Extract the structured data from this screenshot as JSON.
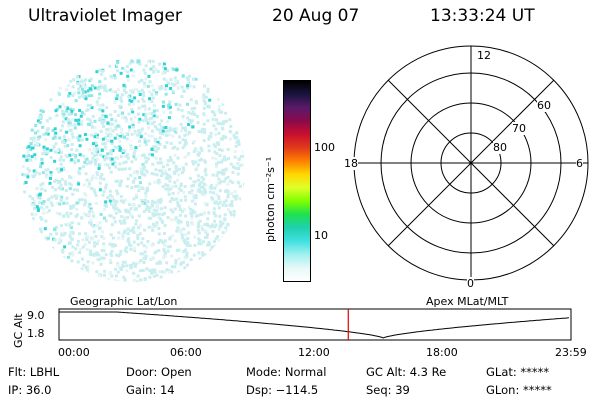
{
  "header": {
    "instrument": "Ultraviolet Imager",
    "date": "20 Aug 07",
    "time": "13:33:24 UT"
  },
  "colorbar": {
    "unit_label": "photon cm⁻²s⁻¹",
    "ticks": [
      "100",
      "10"
    ],
    "colors": [
      "#000000",
      "#1a1440",
      "#5a1a6a",
      "#8a0a4a",
      "#c8102e",
      "#e03a1a",
      "#ff7f00",
      "#ffd700",
      "#dfff2a",
      "#7fff00",
      "#20e050",
      "#20d0b0",
      "#40e0e0",
      "#a0f0f0",
      "#e6f8f8",
      "#ffffff"
    ]
  },
  "polar_plot": {
    "mlt_labels": {
      "top": "12",
      "left": "18",
      "right": "6",
      "bottom": "0"
    },
    "lat_labels": [
      "60",
      "70",
      "80"
    ]
  },
  "alt_plot": {
    "left_title": "Geographic Lat/Lon",
    "right_title": "Apex MLat/MLT",
    "ylabel": "GC Alt",
    "ytick_top": "9.0",
    "ytick_bottom": "1.8",
    "x_ticks": [
      "00:00",
      "06:00",
      "12:00",
      "18:00",
      "23:59"
    ],
    "current_time_hours": 13.56,
    "marker_color": "#e00000"
  },
  "footer": {
    "row1": {
      "filter": "Flt: LBHL",
      "door": "Door: Open",
      "mode": "Mode: Normal",
      "gc_alt": "GC Alt: 4.3 Re",
      "glat": "GLat: *****"
    },
    "row2": {
      "ip": "IP: 36.0",
      "gain": "Gain: 14",
      "dsp": "Dsp: −114.5",
      "seq": "Seq: 39",
      "glon": "GLon: *****"
    }
  }
}
